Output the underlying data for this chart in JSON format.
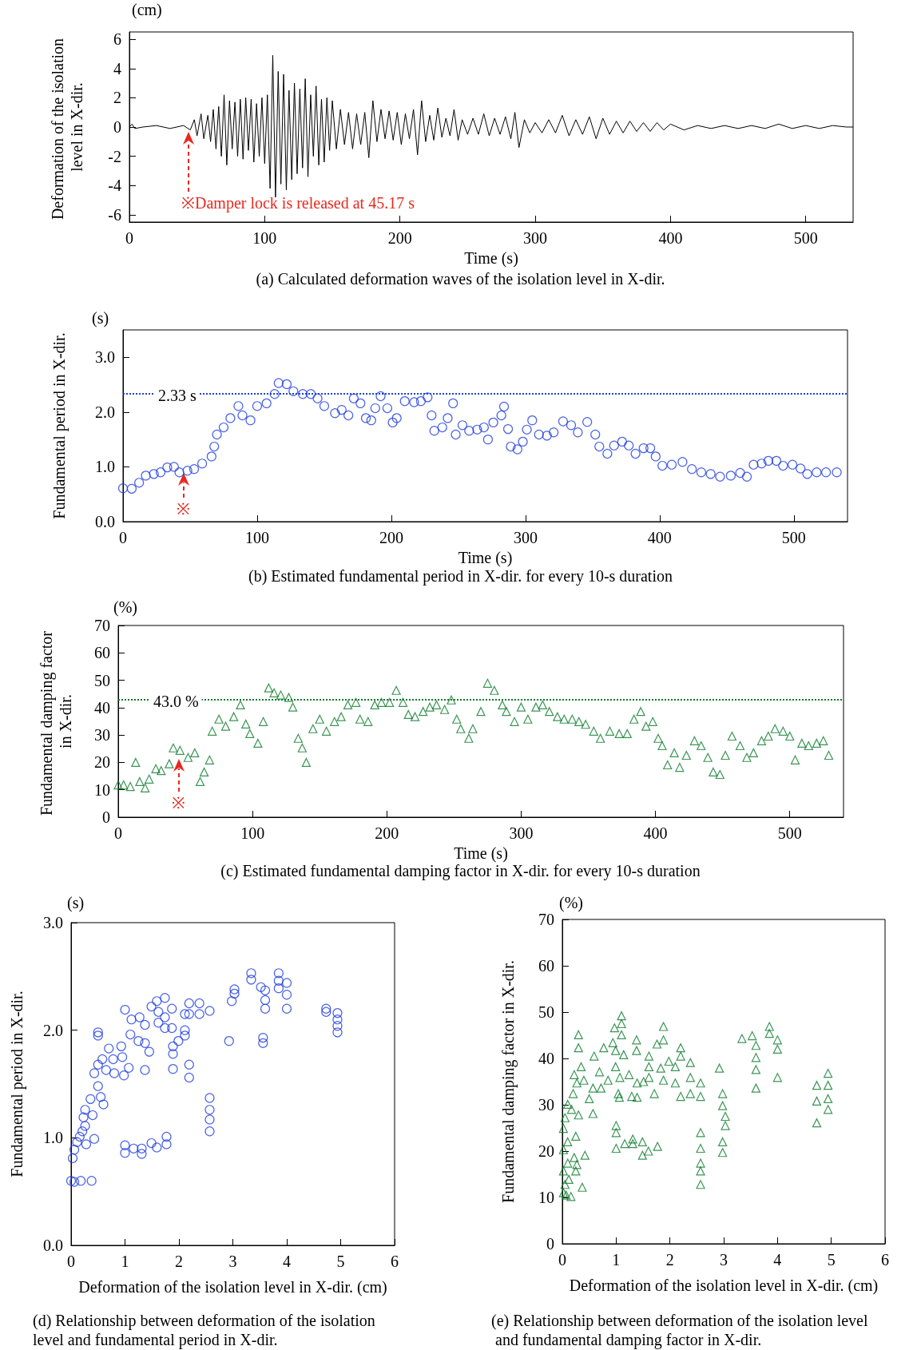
{
  "chart_data": [
    {
      "type": "line",
      "title": "(a) Calculated deformation waves of the isolation level in X-dir.",
      "xlabel": "Time (s)",
      "ylabel": "Deformation of the isolation level in X-dir.",
      "annotations": [
        "(cm)",
        "※Damper lock is released at 45.17 s"
      ],
      "color": "#000000",
      "xlim": [
        0,
        535
      ],
      "ylim": [
        -6.5,
        6.5
      ],
      "xticks": [
        0,
        100,
        200,
        300,
        400,
        500
      ],
      "yticks": [
        -6,
        -4,
        -2,
        0,
        2,
        4,
        6
      ],
      "x": [
        0,
        2,
        4,
        10,
        20,
        30,
        40,
        45,
        48,
        50,
        53,
        55,
        58,
        60,
        62,
        64,
        66,
        68,
        70,
        72,
        74,
        76,
        78,
        80,
        82,
        84,
        86,
        88,
        90,
        92,
        94,
        96,
        98,
        100,
        102,
        104,
        106,
        108,
        110,
        112,
        114,
        116,
        118,
        120,
        122,
        124,
        126,
        128,
        130,
        132,
        134,
        136,
        138,
        140,
        142,
        144,
        146,
        148,
        150,
        153,
        156,
        159,
        162,
        165,
        168,
        171,
        174,
        177,
        180,
        183,
        186,
        189,
        192,
        195,
        198,
        201,
        204,
        207,
        210,
        213,
        216,
        219,
        222,
        225,
        228,
        231,
        234,
        237,
        240,
        243,
        246,
        250,
        254,
        258,
        262,
        266,
        270,
        274,
        278,
        282,
        285,
        288,
        292,
        296,
        300,
        305,
        310,
        315,
        320,
        325,
        330,
        335,
        340,
        345,
        350,
        355,
        360,
        365,
        370,
        375,
        380,
        385,
        390,
        395,
        400,
        410,
        420,
        430,
        440,
        450,
        460,
        470,
        480,
        490,
        500,
        510,
        520,
        530,
        535
      ],
      "values": [
        0,
        0.2,
        -0.1,
        0,
        0.1,
        -0.1,
        0.1,
        -0.2,
        0.5,
        -0.6,
        0.9,
        -0.8,
        0.8,
        -1.0,
        1.2,
        -1.5,
        1.4,
        -2.0,
        2.2,
        -2.6,
        1.8,
        -1.5,
        1.7,
        -2.0,
        1.9,
        -2.2,
        2.0,
        -1.6,
        1.9,
        -2.4,
        1.6,
        -2.0,
        2.0,
        -2.5,
        2.2,
        -4.2,
        4.9,
        -4.8,
        3.8,
        -3.9,
        3.6,
        -4.3,
        2.5,
        -3.6,
        3.0,
        -3.2,
        2.6,
        -2.8,
        3.3,
        -3.4,
        2.2,
        -2.0,
        2.8,
        -2.6,
        1.9,
        -2.4,
        2.0,
        -1.6,
        1.8,
        -1.5,
        1.2,
        -1.2,
        1.0,
        -1.5,
        0.9,
        -1.2,
        1.0,
        -2.1,
        1.8,
        -1.0,
        1.2,
        -0.8,
        1.1,
        -0.9,
        1.0,
        -1.2,
        0.9,
        -0.8,
        1.2,
        -1.9,
        1.8,
        -1.0,
        0.8,
        -0.9,
        1.3,
        -0.7,
        0.6,
        -0.6,
        1.2,
        -0.9,
        0.5,
        -0.5,
        0.6,
        -0.5,
        0.9,
        -0.6,
        0.6,
        -0.5,
        0.7,
        -0.8,
        1.0,
        -1.4,
        0.5,
        -0.4,
        0.3,
        -0.4,
        0.5,
        -0.4,
        0.8,
        -0.6,
        0.5,
        -0.5,
        0.7,
        -0.8,
        0.6,
        -0.5,
        0.4,
        -0.4,
        0.4,
        -0.3,
        0.3,
        -0.3,
        0.3,
        -0.2,
        0.2,
        -0.2,
        0.1,
        -0.1,
        0.1,
        -0.1,
        0.1,
        -0.1,
        0.2,
        -0.1,
        0.1,
        -0.1,
        0.1,
        0.0,
        0
      ]
    },
    {
      "type": "scatter",
      "title": "(b) Estimated fundamental period in X-dir. for every 10-s duration",
      "xlabel": "Time (s)",
      "ylabel": "Fundamental period in X-dir.",
      "annotations": [
        "(s)",
        {
          "text": "※",
          "x": 45.17,
          "y": 0.92
        }
      ],
      "color": "#1f3de0",
      "marker": "circle",
      "xlim": [
        0,
        540
      ],
      "ylim": [
        0,
        3.5
      ],
      "xticks": [
        0,
        100,
        200,
        300,
        400,
        500
      ],
      "yticks": [
        {
          "value": 0,
          "label": "0.0"
        },
        {
          "value": 1,
          "label": "1.0"
        },
        {
          "value": 2,
          "label": "2.0"
        },
        {
          "value": 3,
          "label": "3.0"
        }
      ],
      "ref_lines": [
        {
          "axis": "y",
          "value": 2.33,
          "label": "2.33 s",
          "color": "#1f3de0",
          "line_style": "dotted"
        }
      ],
      "x": [
        0,
        6.5,
        12,
        17,
        23,
        28,
        33,
        38,
        42,
        48,
        53,
        59,
        66,
        68,
        70,
        75,
        80,
        86,
        89,
        95,
        100,
        107,
        113,
        116,
        122,
        127,
        134,
        140,
        145,
        150,
        158,
        163,
        168,
        172,
        177,
        181,
        185,
        188,
        192,
        197,
        201,
        204,
        210,
        217,
        222,
        227,
        230,
        232,
        238,
        242,
        246,
        248,
        253,
        258,
        264,
        269,
        272,
        276,
        282,
        284,
        287,
        289,
        294,
        298,
        301,
        305,
        310,
        316,
        321,
        328,
        334,
        339,
        346,
        352,
        355,
        361,
        366,
        372,
        377,
        382,
        388,
        393,
        397,
        402,
        409,
        417,
        424,
        431,
        438,
        445,
        453,
        460,
        465,
        470,
        476,
        481,
        487,
        492,
        499,
        505,
        510,
        517,
        524,
        532
      ],
      "values": [
        0.61,
        0.6,
        0.71,
        0.84,
        0.87,
        0.9,
        0.99,
        1.0,
        0.9,
        0.93,
        0.96,
        1.06,
        1.19,
        1.37,
        1.59,
        1.72,
        1.89,
        2.11,
        1.94,
        1.85,
        2.11,
        2.16,
        2.33,
        2.53,
        2.51,
        2.38,
        2.33,
        2.33,
        2.25,
        2.11,
        1.98,
        2.04,
        1.94,
        2.25,
        2.16,
        1.89,
        1.85,
        2.07,
        2.29,
        2.07,
        1.81,
        1.89,
        2.2,
        2.18,
        2.2,
        2.27,
        1.94,
        1.66,
        1.72,
        1.89,
        2.16,
        1.59,
        1.76,
        1.66,
        1.68,
        1.72,
        1.5,
        1.81,
        1.94,
        2.1,
        1.69,
        1.37,
        1.32,
        1.46,
        1.68,
        1.85,
        1.59,
        1.57,
        1.63,
        1.83,
        1.76,
        1.63,
        1.82,
        1.59,
        1.37,
        1.24,
        1.39,
        1.46,
        1.39,
        1.24,
        1.34,
        1.34,
        1.19,
        1.02,
        1.04,
        1.09,
        0.96,
        0.9,
        0.87,
        0.82,
        0.84,
        0.89,
        0.82,
        1.04,
        1.06,
        1.11,
        1.11,
        1.02,
        1.04,
        0.97,
        0.87,
        0.9,
        0.9,
        0.9
      ]
    },
    {
      "type": "scatter",
      "title": "(c) Estimated fundamental damping factor in X-dir. for every 10-s duration",
      "xlabel": "Time (s)",
      "ylabel": "Fundamental damping factor in X-dir.",
      "annotations": [
        "(%)",
        {
          "text": "※",
          "x": 45.17,
          "y": 22
        }
      ],
      "color": "#0b7a2a",
      "marker": "triangle",
      "xlim": [
        0,
        540
      ],
      "ylim": [
        0,
        70
      ],
      "xticks": [
        0,
        100,
        200,
        300,
        400,
        500
      ],
      "yticks": [
        0,
        10,
        20,
        30,
        40,
        50,
        60,
        70
      ],
      "ref_lines": [
        {
          "axis": "y",
          "value": 43.0,
          "label": "43.0 %",
          "color": "#0b7a2a",
          "line_style": "dotted"
        }
      ],
      "x": [
        0,
        4,
        9,
        13,
        16,
        20,
        23,
        28,
        32,
        38,
        41,
        46,
        52,
        57,
        61,
        64,
        68,
        70,
        75,
        80,
        86,
        91,
        95,
        98,
        104,
        108,
        112,
        116,
        121,
        127,
        130,
        134,
        137,
        140,
        145,
        150,
        155,
        161,
        166,
        171,
        177,
        180,
        186,
        191,
        196,
        202,
        207,
        212,
        216,
        221,
        227,
        232,
        237,
        243,
        248,
        252,
        255,
        261,
        264,
        270,
        275,
        280,
        286,
        289,
        295,
        300,
        305,
        311,
        316,
        321,
        327,
        332,
        338,
        343,
        348,
        354,
        359,
        366,
        373,
        379,
        384,
        389,
        393,
        398,
        402,
        405,
        409,
        414,
        418,
        423,
        429,
        434,
        439,
        443,
        448,
        452,
        457,
        463,
        468,
        473,
        479,
        484,
        489,
        495,
        500,
        504,
        509,
        514,
        520,
        525,
        529
      ],
      "values": [
        11.8,
        11.8,
        11.2,
        20,
        13,
        10.7,
        13.9,
        17.7,
        17,
        19.5,
        25.3,
        24.4,
        21.8,
        23.5,
        13,
        16.5,
        20.9,
        31.4,
        35.8,
        33.2,
        36.7,
        41,
        34,
        30.5,
        27,
        34.9,
        47.2,
        45.4,
        44.6,
        43.7,
        40.2,
        28.8,
        25.3,
        20,
        32.3,
        35.8,
        31.4,
        34.9,
        36.7,
        41,
        41.9,
        35.8,
        34.9,
        41,
        41.9,
        41.9,
        46.3,
        41.9,
        37.5,
        36.7,
        38.6,
        40.2,
        41,
        39.3,
        42.8,
        35.8,
        32.3,
        28.8,
        32.3,
        38.6,
        48.9,
        46.3,
        41,
        38.6,
        34.9,
        40.2,
        35.8,
        40.2,
        41,
        38.6,
        36.7,
        35.8,
        35.8,
        34.9,
        33.9,
        31.4,
        28.8,
        31.4,
        30.5,
        30.5,
        35.8,
        38.6,
        33.2,
        34.9,
        28.8,
        26.1,
        19.1,
        23.5,
        18.2,
        22.6,
        27.9,
        26.1,
        21.8,
        16.5,
        15.6,
        22.6,
        29.6,
        26.1,
        21.8,
        23.5,
        27.9,
        29.6,
        32.3,
        31.4,
        29.6,
        20.9,
        27,
        26.1,
        27,
        27.9,
        22.6
      ]
    },
    {
      "type": "scatter",
      "title": "(d) Relationship between deformation of the isolation level and fundamental period in X-dir.",
      "xlabel": "Deformation of the isolation level in X-dir. (cm)",
      "ylabel": "Fundamental period in X-dir.",
      "annotations": [
        "(s)"
      ],
      "color": "#1f3de0",
      "marker": "circle",
      "xlim": [
        0,
        6
      ],
      "ylim": [
        0,
        3
      ],
      "xticks": [
        0,
        1,
        2,
        3,
        4,
        5,
        6
      ],
      "yticks": [
        {
          "value": 0,
          "label": "0.0"
        },
        {
          "value": 1,
          "label": "1.0"
        },
        {
          "value": 2,
          "label": "2.0"
        },
        {
          "value": 3,
          "label": "3.0"
        }
      ],
      "x": [
        0,
        0.06,
        0.18,
        0.38,
        0.03,
        0.06,
        0.11,
        0.16,
        0.21,
        0.26,
        0.23,
        0.28,
        0.43,
        0.26,
        0.36,
        0.4,
        0.5,
        0.55,
        0.6,
        0.43,
        0.5,
        0.58,
        0.65,
        0.7,
        0.78,
        0.8,
        0.5,
        0.5,
        0.93,
        0.95,
        0.98,
        1.0,
        1.07,
        1.1,
        1.12,
        1.25,
        1.27,
        1.37,
        1.37,
        1.37,
        1.45,
        1.49,
        1.59,
        1.62,
        1.62,
        1.74,
        1.74,
        1.74,
        1.87,
        1.87,
        1.89,
        1.89,
        1.89,
        1.99,
        2.11,
        2.11,
        2.11,
        2.19,
        2.19,
        2.19,
        2.19,
        2.38,
        2.38,
        2.57,
        2.57,
        2.57,
        2.57,
        2.57,
        1.0,
        1.0,
        1.16,
        1.31,
        1.31,
        1.49,
        1.59,
        1.77,
        1.77,
        2.93,
        2.98,
        3.03,
        3.03,
        3.34,
        3.34,
        3.52,
        3.56,
        3.56,
        3.6,
        3.6,
        3.6,
        3.85,
        3.85,
        3.85,
        4.0,
        4.0,
        4.0,
        4.73,
        4.73,
        4.94,
        4.94,
        4.94,
        4.94
      ],
      "values": [
        0.6,
        0.59,
        0.6,
        0.6,
        0.81,
        0.89,
        0.96,
        1.01,
        1.06,
        1.11,
        1.19,
        0.94,
        0.99,
        1.26,
        1.36,
        1.21,
        1.48,
        1.38,
        1.31,
        1.6,
        1.68,
        1.73,
        1.63,
        1.83,
        1.73,
        1.6,
        1.98,
        1.95,
        1.85,
        1.75,
        1.58,
        2.19,
        1.65,
        1.96,
        2.1,
        1.9,
        2.12,
        2.05,
        1.88,
        1.63,
        1.8,
        2.22,
        2.27,
        2.17,
        2.07,
        2.3,
        2.12,
        2.02,
        2.2,
        2.02,
        1.85,
        1.78,
        1.64,
        1.9,
        2.15,
        2.0,
        1.95,
        2.25,
        2.15,
        1.68,
        1.56,
        2.25,
        2.15,
        2.18,
        1.37,
        1.26,
        1.17,
        1.06,
        0.93,
        0.86,
        0.9,
        0.85,
        0.9,
        0.95,
        0.91,
        0.94,
        1.01,
        1.9,
        2.27,
        2.38,
        2.34,
        2.53,
        2.47,
        2.4,
        1.93,
        1.88,
        2.37,
        2.28,
        2.2,
        2.53,
        2.46,
        2.39,
        2.44,
        2.33,
        2.2,
        2.2,
        2.17,
        2.16,
        2.1,
        2.04,
        1.98
      ]
    },
    {
      "type": "scatter",
      "title": "(e) Relationship between deformation of the isolation level and fundamental damping factor in X-dir.",
      "xlabel": "Deformation of the isolation level in X-dir. (cm)",
      "ylabel": "Fundamental damping factor in X-dir.",
      "annotations": [
        "(%)"
      ],
      "color": "#0b7a2a",
      "marker": "triangle",
      "xlim": [
        0,
        6
      ],
      "ylim": [
        0,
        70
      ],
      "xticks": [
        0,
        1,
        2,
        3,
        4,
        5,
        6
      ],
      "yticks": [
        0,
        10,
        20,
        30,
        40,
        50,
        60,
        70
      ],
      "x": [
        0.02,
        0.07,
        0.16,
        0.05,
        0.12,
        0.02,
        0.25,
        0.37,
        0.1,
        0.22,
        0.27,
        0.42,
        0.02,
        0.1,
        0.02,
        0.25,
        0.05,
        0.17,
        0.1,
        0.3,
        0.2,
        0.27,
        0.22,
        0.35,
        0.3,
        0.3,
        0.4,
        0.5,
        0.57,
        0.57,
        0.59,
        0.69,
        0.72,
        0.77,
        0.85,
        0.94,
        0.97,
        0.99,
        0.99,
        1.07,
        1.1,
        1.1,
        1.1,
        1.14,
        1.04,
        1.06,
        1.24,
        1.29,
        1.38,
        1.38,
        1.39,
        1.39,
        1.51,
        1.61,
        1.61,
        1.61,
        1.71,
        1.76,
        1.83,
        1.88,
        1.88,
        1.88,
        1.98,
        2.1,
        2.1,
        2.2,
        2.2,
        2.2,
        2.38,
        2.38,
        2.38,
        2.57,
        2.57,
        1.0,
        1.0,
        1.0,
        1.16,
        1.31,
        1.31,
        1.49,
        1.49,
        1.6,
        1.77,
        2.57,
        2.57,
        2.57,
        2.57,
        2.57,
        2.92,
        2.98,
        2.98,
        3.03,
        3.03,
        2.98,
        2.98,
        3.34,
        3.53,
        3.6,
        3.6,
        3.6,
        3.6,
        3.85,
        3.85,
        4.0,
        4.0,
        4.0,
        4.73,
        4.73,
        4.73,
        4.94,
        4.94,
        4.94,
        4.94
      ],
      "values": [
        11.0,
        10.5,
        10.2,
        12.8,
        13.9,
        15.7,
        15.7,
        12.2,
        17.4,
        18.6,
        17.1,
        19.1,
        20.3,
        22.0,
        24.9,
        23.2,
        27.2,
        29.0,
        30.1,
        27.8,
        32.4,
        34.7,
        36.5,
        38.2,
        45.1,
        42.3,
        35.3,
        31.3,
        28.1,
        33.6,
        40.5,
        37.1,
        33.6,
        42.3,
        35.3,
        43.4,
        46.6,
        38.2,
        41.7,
        35.9,
        49.2,
        47.5,
        45.1,
        40.8,
        32.4,
        31.6,
        36.5,
        31.8,
        44.0,
        41.7,
        34.7,
        31.6,
        35.0,
        40.5,
        38.2,
        35.9,
        32.4,
        43.1,
        37.9,
        46.9,
        44.0,
        35.3,
        39.4,
        38.2,
        34.7,
        42.3,
        40.5,
        31.8,
        39.1,
        35.9,
        32.4,
        34.7,
        31.8,
        25.5,
        24.0,
        20.6,
        21.6,
        22.6,
        21.6,
        22.0,
        19.1,
        20.0,
        21.0,
        24.0,
        20.6,
        17.4,
        15.7,
        12.8,
        37.9,
        32.4,
        29.8,
        27.5,
        25.5,
        22.0,
        19.7,
        44.3,
        44.9,
        42.8,
        40.2,
        37.6,
        33.6,
        46.9,
        45.4,
        44.0,
        42.0,
        35.9,
        34.2,
        30.8,
        26.1,
        36.8,
        34.2,
        31.3,
        29.0
      ]
    }
  ]
}
